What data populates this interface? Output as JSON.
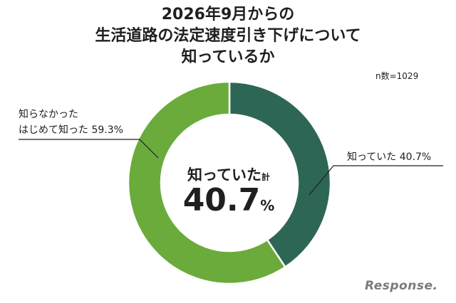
{
  "title_lines": [
    "2026年9月からの",
    "生活道路の法定速度引き下げについて",
    "知っているか"
  ],
  "sample_size": "n数=1029",
  "center_label": "知っていた",
  "center_label_suffix": "計",
  "center_value": "40.7",
  "center_value_unit": "%",
  "colors": {
    "known": "#2e6656",
    "unknown": "#6aab3c",
    "leader": "#1f1f1f"
  },
  "chart_data": {
    "type": "pie",
    "donut": true,
    "start": "12 o'clock, clockwise",
    "slices": [
      {
        "label": "知っていた 40.7%",
        "value": 40.7
      },
      {
        "label_lines": [
          "知らなかった",
          "はじめて知った 59.3%"
        ],
        "value": 59.3
      }
    ]
  },
  "watermark": "Response."
}
